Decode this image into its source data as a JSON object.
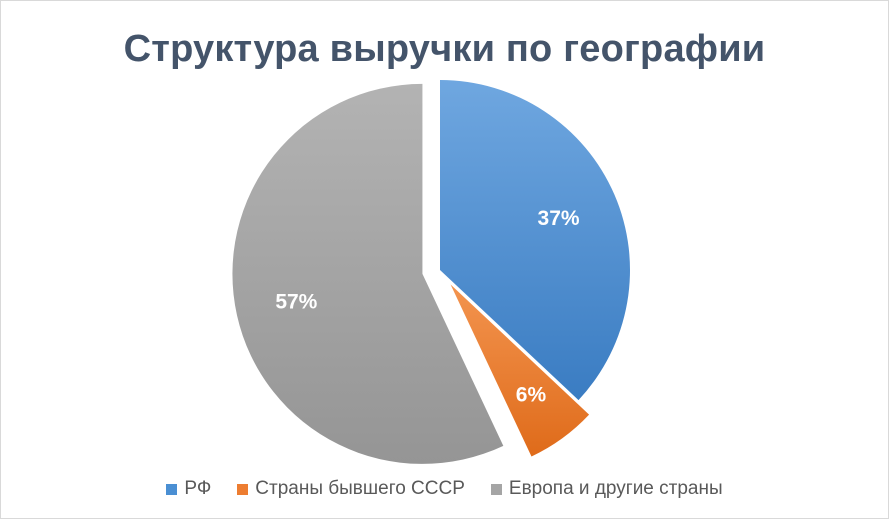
{
  "chart_data": {
    "type": "pie",
    "title": "Структура выручки по географии",
    "slices": [
      {
        "label": "РФ",
        "value": 37,
        "data_label": "37%",
        "color": "#4a8fd3",
        "color_light": "#6fa7e0",
        "color_dark": "#3a7cc2",
        "exploded": false
      },
      {
        "label": "Страны бывшего СССР",
        "value": 6,
        "data_label": "6%",
        "color": "#ed7d31",
        "color_light": "#f3944f",
        "color_dark": "#df6b1a",
        "exploded": true
      },
      {
        "label": "Европа и другие страны",
        "value": 57,
        "data_label": "57%",
        "color": "#a5a5a5",
        "color_light": "#b3b3b3",
        "color_dark": "#959595",
        "exploded": true
      }
    ],
    "legend_position": "bottom"
  }
}
